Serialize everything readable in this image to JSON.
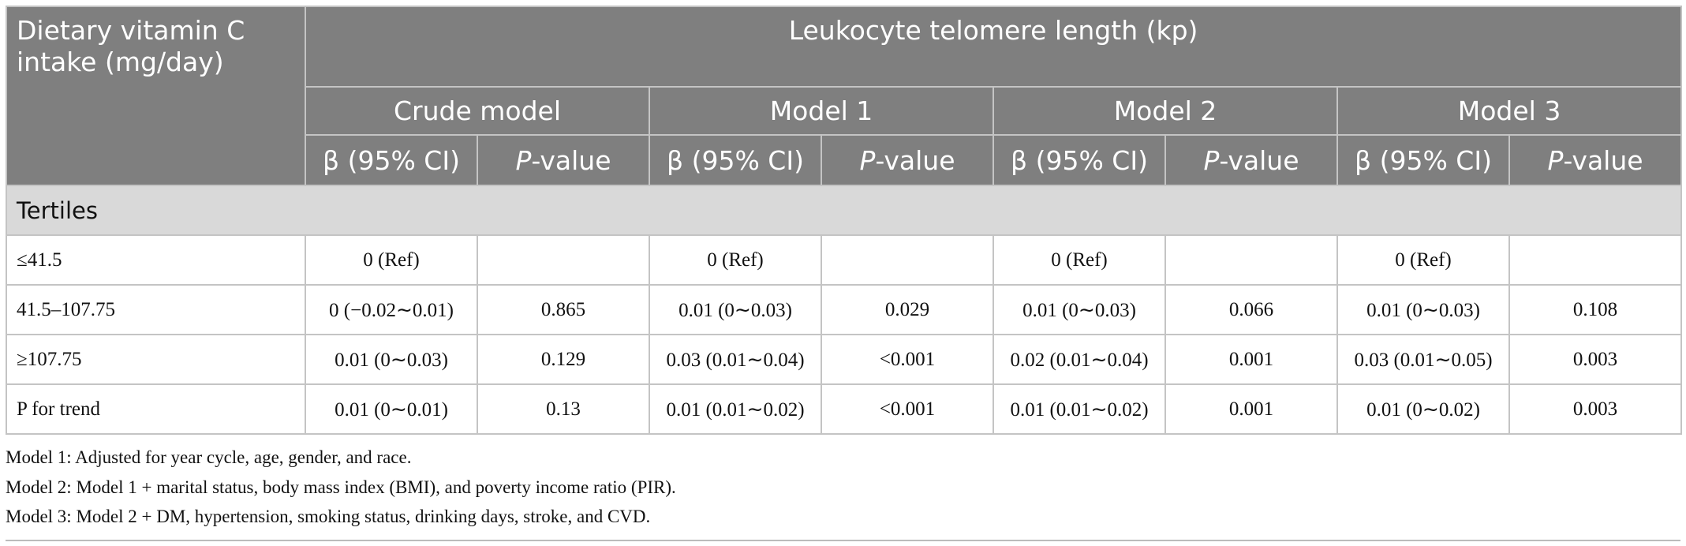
{
  "header": {
    "row_label": "Dietary vitamin C intake (mg/day)",
    "group": "Leukocyte telomere length (kp)",
    "models": [
      "Crude model",
      "Model 1",
      "Model 2",
      "Model 3"
    ],
    "columns": [
      [
        "β (95% CI)",
        [
          "P",
          "-value"
        ]
      ],
      [
        "β (95% CI)",
        [
          "P",
          "-value"
        ]
      ],
      [
        "β (95% CI)",
        [
          "P",
          "-value"
        ]
      ],
      [
        "β (95% CI)",
        [
          "P",
          "-value"
        ]
      ]
    ]
  },
  "table": {
    "section": "Tertiles",
    "rows": [
      [
        "≤41.5",
        "0 (Ref)",
        null,
        "0 (Ref)",
        null,
        "0 (Ref)",
        null,
        "0 (Ref)",
        null
      ],
      [
        "41.5–107.75",
        "0 (−0.02∼0.01)",
        "0.865",
        "0.01 (0∼0.03)",
        "0.029",
        "0.01 (0∼0.03)",
        "0.066",
        "0.01 (0∼0.03)",
        "0.108"
      ],
      [
        "≥107.75",
        "0.01 (0∼0.03)",
        "0.129",
        "0.03 (0.01∼0.04)",
        "<0.001",
        "0.02 (0.01∼0.04)",
        "0.001",
        "0.03 (0.01∼0.05)",
        "0.003"
      ],
      [
        "P for trend",
        "0.01 (0∼0.01)",
        "0.13",
        "0.01 (0.01∼0.02)",
        "<0.001",
        "0.01 (0.01∼0.02)",
        "0.001",
        "0.01 (0∼0.02)",
        "0.003"
      ]
    ]
  },
  "footnotes": [
    "Model 1: Adjusted for year cycle, age, gender, and race.",
    "Model 2: Model 1 + marital status, body mass index (BMI), and poverty income ratio (PIR).",
    "Model 3: Model 2 + DM, hypertension, smoking status, drinking days, stroke, and CVD."
  ]
}
